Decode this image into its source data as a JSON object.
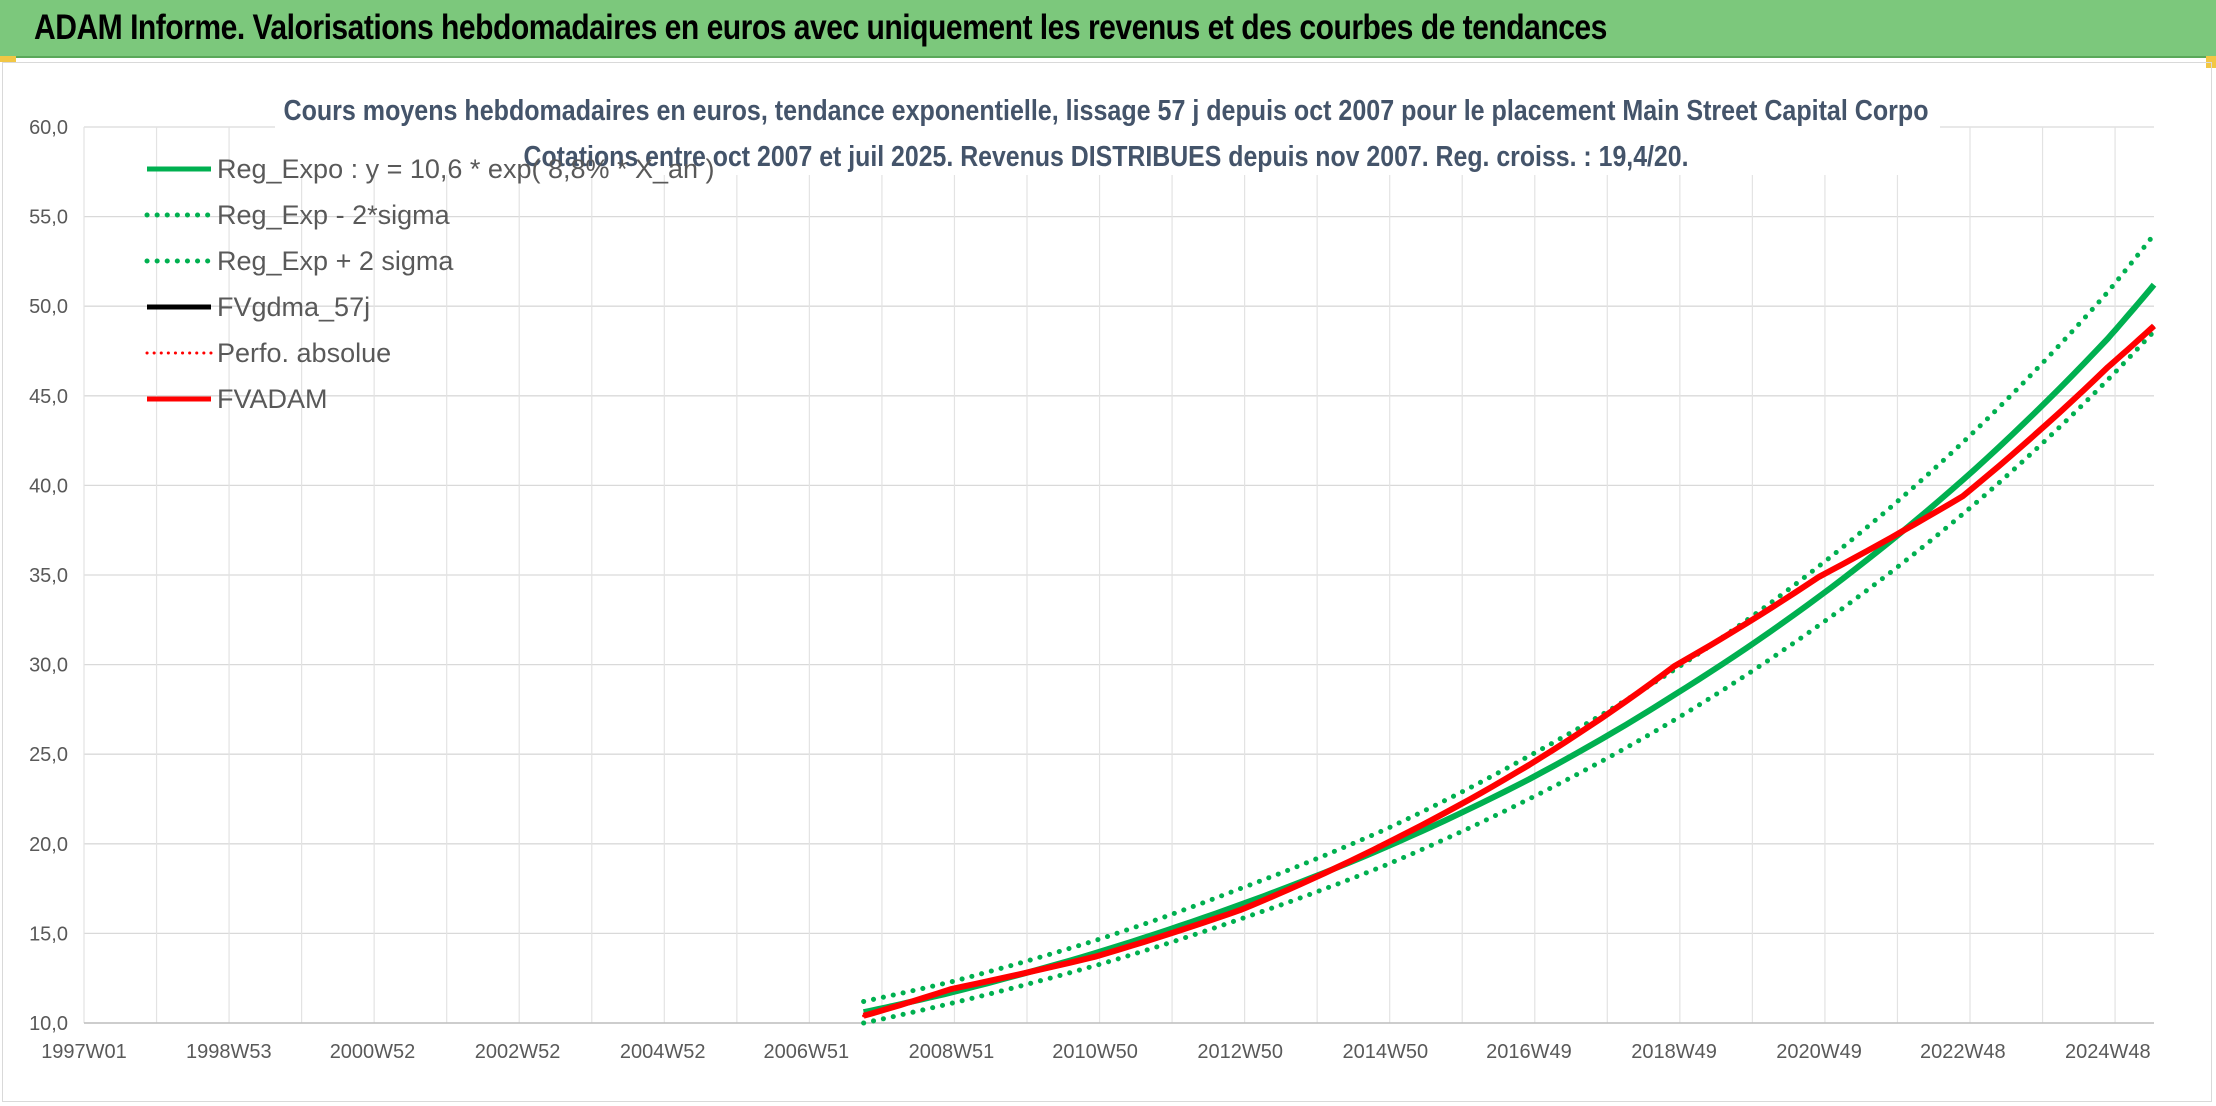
{
  "header": {
    "title": "ADAM Informe. Valorisations hebdomadaires en euros avec uniquement les revenus et des courbes de tendances",
    "background": "#7cc87c"
  },
  "chart_data": {
    "type": "line",
    "title_lines": [
      "Cours moyens hebdomadaires en euros, tendance exponentielle, lissage 57 j depuis oct 2007 pour le placement Main Street Capital Corpo",
      "Cotations entre oct 2007 et juil 2025. Revenus DISTRIBUES depuis nov 2007. Reg. croiss. : 19,4/20."
    ],
    "xlabel": "",
    "ylabel": "",
    "x_tick_labels": [
      "1997W01",
      "1998W53",
      "2000W52",
      "2002W52",
      "2004W52",
      "2006W51",
      "2008W51",
      "2010W50",
      "2012W50",
      "2014W50",
      "2016W49",
      "2018W49",
      "2020W49",
      "2022W48",
      "2024W48"
    ],
    "x_range": [
      "1997W01",
      "2025W29"
    ],
    "y_tick_labels": [
      "10,0",
      "15,0",
      "20,0",
      "25,0",
      "30,0",
      "35,0",
      "40,0",
      "45,0",
      "50,0",
      "55,0",
      "60,0"
    ],
    "ylim": [
      10,
      60
    ],
    "grid": true,
    "legend_position": "top-left",
    "series": [
      {
        "name": "Reg_Expo : y = 10,6 * exp( 8,8% *  X_an )",
        "color": "#00b050",
        "style": "solid",
        "points": [
          [
            "2007W40",
            10.6
          ],
          [
            "2008W51",
            11.7
          ],
          [
            "2010W50",
            13.9
          ],
          [
            "2012W50",
            16.6
          ],
          [
            "2014W50",
            19.8
          ],
          [
            "2016W49",
            23.6
          ],
          [
            "2018W49",
            28.3
          ],
          [
            "2020W49",
            33.8
          ],
          [
            "2022W48",
            40.3
          ],
          [
            "2024W48",
            48.2
          ],
          [
            "2025W29",
            51.2
          ]
        ]
      },
      {
        "name": "Reg_Exp - 2*sigma",
        "color": "#00b050",
        "style": "dotted",
        "points": [
          [
            "2007W40",
            10.0
          ],
          [
            "2008W51",
            11.1
          ],
          [
            "2010W50",
            13.2
          ],
          [
            "2012W50",
            15.8
          ],
          [
            "2014W50",
            18.8
          ],
          [
            "2016W49",
            22.5
          ],
          [
            "2018W49",
            26.9
          ],
          [
            "2020W49",
            32.2
          ],
          [
            "2022W48",
            38.4
          ],
          [
            "2024W48",
            45.9
          ],
          [
            "2025W29",
            48.6
          ]
        ]
      },
      {
        "name": "Reg_Exp + 2 sigma",
        "color": "#00b050",
        "style": "dotted",
        "points": [
          [
            "2007W40",
            11.2
          ],
          [
            "2008W51",
            12.3
          ],
          [
            "2010W50",
            14.6
          ],
          [
            "2012W50",
            17.5
          ],
          [
            "2014W50",
            20.8
          ],
          [
            "2016W49",
            24.9
          ],
          [
            "2018W49",
            29.7
          ],
          [
            "2020W49",
            35.5
          ],
          [
            "2022W48",
            42.4
          ],
          [
            "2024W48",
            50.8
          ],
          [
            "2025W29",
            54.0
          ]
        ]
      },
      {
        "name": "FVgdma_57j",
        "color": "#000000",
        "style": "solid",
        "points": [
          [
            "2007W40",
            10.4
          ],
          [
            "2008W51",
            11.9
          ],
          [
            "2010W50",
            13.7
          ],
          [
            "2012W50",
            16.3
          ],
          [
            "2014W50",
            20.0
          ],
          [
            "2016W49",
            24.4
          ],
          [
            "2018W49",
            29.9
          ],
          [
            "2020W49",
            34.9
          ],
          [
            "2022W48",
            39.4
          ],
          [
            "2024W48",
            46.6
          ],
          [
            "2025W29",
            48.9
          ]
        ]
      },
      {
        "name": "Perfo. absolue",
        "color": "#ff0000",
        "style": "dotted",
        "points": [
          [
            "2007W40",
            10.4
          ],
          [
            "2008W51",
            11.9
          ],
          [
            "2010W50",
            13.7
          ],
          [
            "2012W50",
            16.3
          ],
          [
            "2014W50",
            20.0
          ],
          [
            "2016W49",
            24.4
          ],
          [
            "2018W49",
            29.9
          ],
          [
            "2020W49",
            34.9
          ],
          [
            "2022W48",
            39.4
          ],
          [
            "2024W48",
            46.6
          ],
          [
            "2025W29",
            48.9
          ]
        ]
      },
      {
        "name": "FVADAM",
        "color": "#ff0000",
        "style": "solid",
        "points": [
          [
            "2007W40",
            10.4
          ],
          [
            "2008W51",
            11.9
          ],
          [
            "2010W50",
            13.7
          ],
          [
            "2012W50",
            16.3
          ],
          [
            "2014W50",
            20.0
          ],
          [
            "2016W49",
            24.4
          ],
          [
            "2018W49",
            29.9
          ],
          [
            "2020W49",
            34.9
          ],
          [
            "2022W48",
            39.4
          ],
          [
            "2024W48",
            46.6
          ],
          [
            "2025W29",
            48.9
          ]
        ]
      }
    ]
  }
}
